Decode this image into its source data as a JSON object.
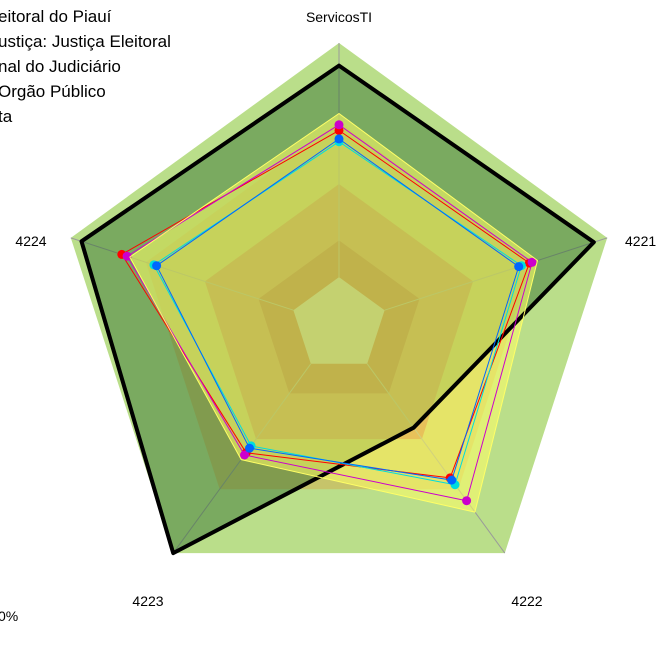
{
  "chart_data": {
    "type": "radar",
    "axes": [
      "ServicosTI",
      "4221",
      "4222",
      "4223",
      "4224"
    ],
    "rlim": [
      0,
      100
    ],
    "bands": [
      {
        "from": 0,
        "to": 17,
        "color": "#c0c0c0"
      },
      {
        "from": 17,
        "to": 30,
        "color": "#ad452d"
      },
      {
        "from": 30,
        "to": 50,
        "color": "#c9774c"
      },
      {
        "from": 50,
        "to": 72,
        "color": "#c6c46a"
      },
      {
        "from": 72,
        "to": 100,
        "color": "#bade8a"
      }
    ],
    "series": [
      {
        "name": "",
        "color": "#000000",
        "width": 4,
        "values": [
          92,
          95,
          45,
          100,
          96
        ],
        "fill": "#2d6b2d",
        "fill_opacity": 0.45
      },
      {
        "name": "",
        "color": "#ff0000",
        "width": 1,
        "values": [
          69,
          71,
          67,
          56,
          81
        ]
      },
      {
        "name": "",
        "color": "#cc00cc",
        "width": 1,
        "values": [
          71,
          72,
          77,
          57,
          79
        ]
      },
      {
        "name": "",
        "color": "#00dddd",
        "width": 1,
        "values": [
          65,
          68,
          70,
          53,
          69
        ]
      },
      {
        "name": "",
        "color": "#0066ff",
        "width": 1,
        "values": [
          66,
          67,
          68,
          54,
          68
        ]
      },
      {
        "name": "",
        "color": "#ffff66",
        "width": 1,
        "values": [
          75,
          74,
          82,
          59,
          78
        ],
        "fill": "#ffff66",
        "fill_opacity": 0.55
      }
    ],
    "legend": {
      "position": "top-left",
      "entries": [
        "eitoral do Piauí",
        "ustiça: Justiça Eleitoral",
        "nal do Judiciário",
        "Orgão Público",
        "ta"
      ]
    },
    "footnote": "0%"
  }
}
